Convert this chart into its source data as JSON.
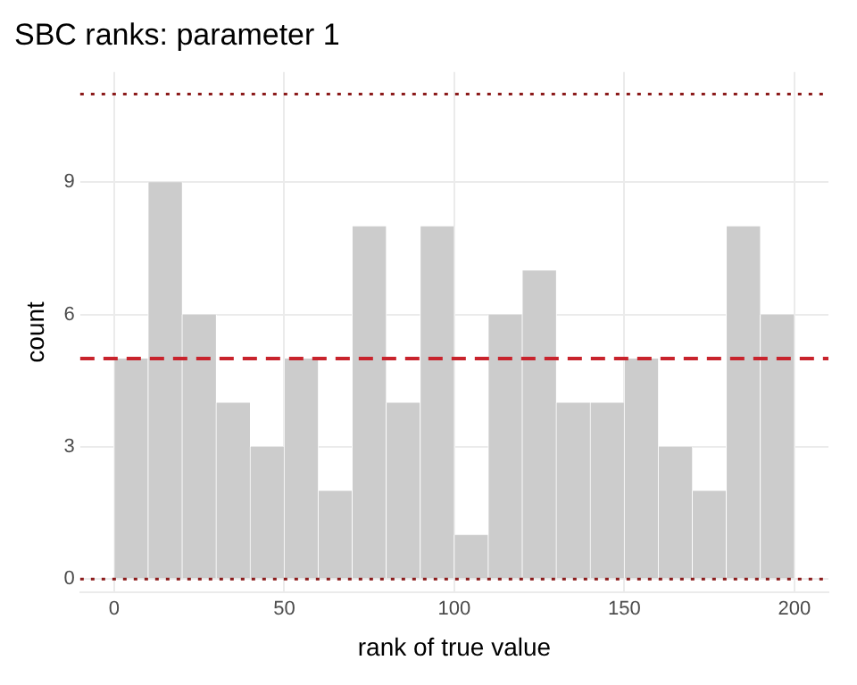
{
  "chart_data": {
    "type": "histogram",
    "title": "SBC ranks: parameter 1",
    "xlabel": "rank of true value",
    "ylabel": "count",
    "bins": [
      0,
      10,
      20,
      30,
      40,
      50,
      60,
      70,
      80,
      90,
      100,
      110,
      120,
      130,
      140,
      150,
      160,
      170,
      180,
      190,
      200
    ],
    "values": [
      5,
      9,
      6,
      4,
      3,
      5,
      2,
      8,
      4,
      8,
      1,
      6,
      7,
      4,
      4,
      5,
      3,
      2,
      8,
      6
    ],
    "color": "#cccccc",
    "xlim": [
      -10,
      210
    ],
    "xticks": [
      0,
      50,
      100,
      150,
      200
    ],
    "ylim": [
      -0.3,
      11.5
    ],
    "yticks": [
      0,
      3,
      6,
      9
    ],
    "grid": true,
    "ref_lines": [
      {
        "axis": "y",
        "value": 5,
        "color": "#c8232c",
        "line_style": "dashed"
      },
      {
        "axis": "y",
        "value": 0,
        "color": "#8b1a1a",
        "line_style": "dotted"
      },
      {
        "axis": "y",
        "value": 11,
        "color": "#8b1a1a",
        "line_style": "dotted"
      }
    ]
  }
}
